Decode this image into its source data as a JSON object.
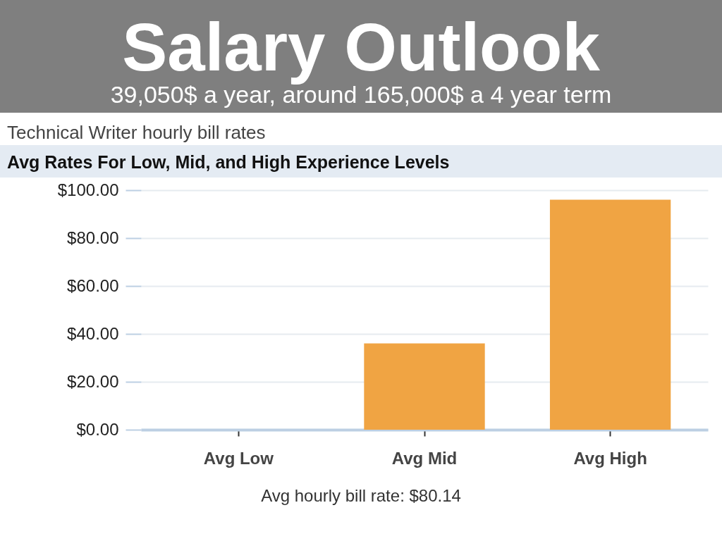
{
  "chart_data": {
    "type": "bar",
    "title": "Salary Outlook",
    "subtitle": "39,050$ a year, around 165,000$ a 4 year term",
    "annotations": [
      "Technical Writer hourly bill rates",
      "Avg Rates For Low, Mid, and High Experience Levels",
      "Avg hourly bill rate: $80.14"
    ],
    "categories": [
      "Avg Low",
      "Avg Mid",
      "Avg High"
    ],
    "values": [
      0,
      36,
      96
    ],
    "color": "#f0a443",
    "ylim": [
      0,
      100
    ],
    "yticks": [
      {
        "value": 0,
        "label": "$0.00"
      },
      {
        "value": 20,
        "label": "$20.00"
      },
      {
        "value": 40,
        "label": "$40.00"
      },
      {
        "value": 60,
        "label": "$60.00"
      },
      {
        "value": 80,
        "label": "$80.00"
      },
      {
        "value": 100,
        "label": "$100.00"
      }
    ],
    "grid": "y"
  }
}
